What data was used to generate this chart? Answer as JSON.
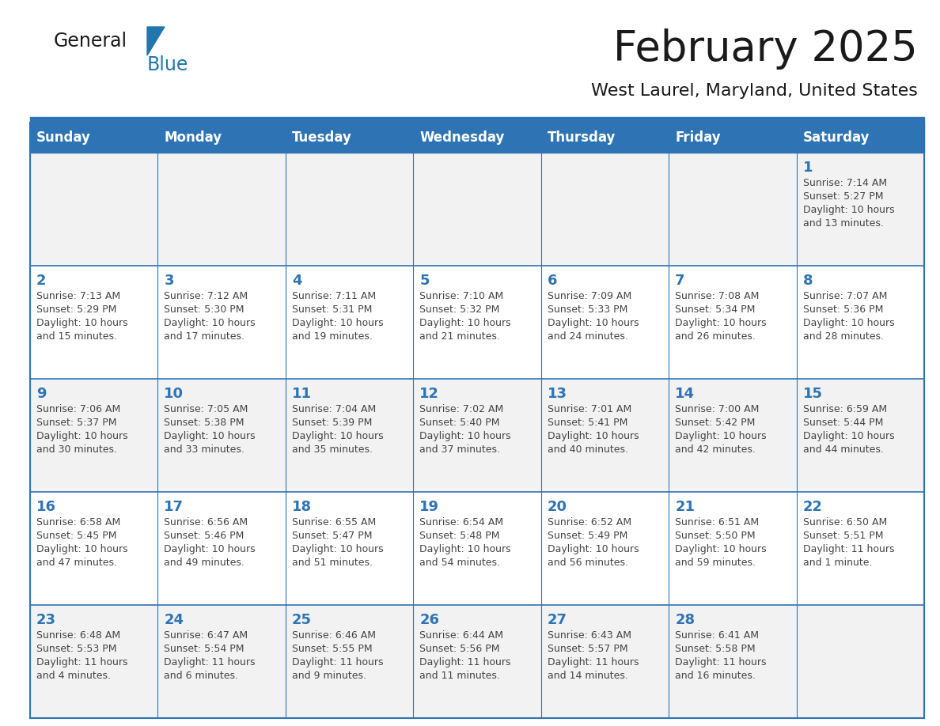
{
  "title": "February 2025",
  "subtitle": "West Laurel, Maryland, United States",
  "header_bg": "#2E74B5",
  "header_text_color": "#FFFFFF",
  "cell_bg_odd": "#F2F2F2",
  "cell_bg_even": "#FFFFFF",
  "day_number_color": "#2E74B5",
  "info_text_color": "#444444",
  "border_color": "#2E74B5",
  "days_of_week": [
    "Sunday",
    "Monday",
    "Tuesday",
    "Wednesday",
    "Thursday",
    "Friday",
    "Saturday"
  ],
  "calendar_data": [
    [
      null,
      null,
      null,
      null,
      null,
      null,
      {
        "day": "1",
        "sunrise": "7:14 AM",
        "sunset": "5:27 PM",
        "daylight1": "Daylight: 10 hours",
        "daylight2": "and 13 minutes."
      }
    ],
    [
      {
        "day": "2",
        "sunrise": "7:13 AM",
        "sunset": "5:29 PM",
        "daylight1": "Daylight: 10 hours",
        "daylight2": "and 15 minutes."
      },
      {
        "day": "3",
        "sunrise": "7:12 AM",
        "sunset": "5:30 PM",
        "daylight1": "Daylight: 10 hours",
        "daylight2": "and 17 minutes."
      },
      {
        "day": "4",
        "sunrise": "7:11 AM",
        "sunset": "5:31 PM",
        "daylight1": "Daylight: 10 hours",
        "daylight2": "and 19 minutes."
      },
      {
        "day": "5",
        "sunrise": "7:10 AM",
        "sunset": "5:32 PM",
        "daylight1": "Daylight: 10 hours",
        "daylight2": "and 21 minutes."
      },
      {
        "day": "6",
        "sunrise": "7:09 AM",
        "sunset": "5:33 PM",
        "daylight1": "Daylight: 10 hours",
        "daylight2": "and 24 minutes."
      },
      {
        "day": "7",
        "sunrise": "7:08 AM",
        "sunset": "5:34 PM",
        "daylight1": "Daylight: 10 hours",
        "daylight2": "and 26 minutes."
      },
      {
        "day": "8",
        "sunrise": "7:07 AM",
        "sunset": "5:36 PM",
        "daylight1": "Daylight: 10 hours",
        "daylight2": "and 28 minutes."
      }
    ],
    [
      {
        "day": "9",
        "sunrise": "7:06 AM",
        "sunset": "5:37 PM",
        "daylight1": "Daylight: 10 hours",
        "daylight2": "and 30 minutes."
      },
      {
        "day": "10",
        "sunrise": "7:05 AM",
        "sunset": "5:38 PM",
        "daylight1": "Daylight: 10 hours",
        "daylight2": "and 33 minutes."
      },
      {
        "day": "11",
        "sunrise": "7:04 AM",
        "sunset": "5:39 PM",
        "daylight1": "Daylight: 10 hours",
        "daylight2": "and 35 minutes."
      },
      {
        "day": "12",
        "sunrise": "7:02 AM",
        "sunset": "5:40 PM",
        "daylight1": "Daylight: 10 hours",
        "daylight2": "and 37 minutes."
      },
      {
        "day": "13",
        "sunrise": "7:01 AM",
        "sunset": "5:41 PM",
        "daylight1": "Daylight: 10 hours",
        "daylight2": "and 40 minutes."
      },
      {
        "day": "14",
        "sunrise": "7:00 AM",
        "sunset": "5:42 PM",
        "daylight1": "Daylight: 10 hours",
        "daylight2": "and 42 minutes."
      },
      {
        "day": "15",
        "sunrise": "6:59 AM",
        "sunset": "5:44 PM",
        "daylight1": "Daylight: 10 hours",
        "daylight2": "and 44 minutes."
      }
    ],
    [
      {
        "day": "16",
        "sunrise": "6:58 AM",
        "sunset": "5:45 PM",
        "daylight1": "Daylight: 10 hours",
        "daylight2": "and 47 minutes."
      },
      {
        "day": "17",
        "sunrise": "6:56 AM",
        "sunset": "5:46 PM",
        "daylight1": "Daylight: 10 hours",
        "daylight2": "and 49 minutes."
      },
      {
        "day": "18",
        "sunrise": "6:55 AM",
        "sunset": "5:47 PM",
        "daylight1": "Daylight: 10 hours",
        "daylight2": "and 51 minutes."
      },
      {
        "day": "19",
        "sunrise": "6:54 AM",
        "sunset": "5:48 PM",
        "daylight1": "Daylight: 10 hours",
        "daylight2": "and 54 minutes."
      },
      {
        "day": "20",
        "sunrise": "6:52 AM",
        "sunset": "5:49 PM",
        "daylight1": "Daylight: 10 hours",
        "daylight2": "and 56 minutes."
      },
      {
        "day": "21",
        "sunrise": "6:51 AM",
        "sunset": "5:50 PM",
        "daylight1": "Daylight: 10 hours",
        "daylight2": "and 59 minutes."
      },
      {
        "day": "22",
        "sunrise": "6:50 AM",
        "sunset": "5:51 PM",
        "daylight1": "Daylight: 11 hours",
        "daylight2": "and 1 minute."
      }
    ],
    [
      {
        "day": "23",
        "sunrise": "6:48 AM",
        "sunset": "5:53 PM",
        "daylight1": "Daylight: 11 hours",
        "daylight2": "and 4 minutes."
      },
      {
        "day": "24",
        "sunrise": "6:47 AM",
        "sunset": "5:54 PM",
        "daylight1": "Daylight: 11 hours",
        "daylight2": "and 6 minutes."
      },
      {
        "day": "25",
        "sunrise": "6:46 AM",
        "sunset": "5:55 PM",
        "daylight1": "Daylight: 11 hours",
        "daylight2": "and 9 minutes."
      },
      {
        "day": "26",
        "sunrise": "6:44 AM",
        "sunset": "5:56 PM",
        "daylight1": "Daylight: 11 hours",
        "daylight2": "and 11 minutes."
      },
      {
        "day": "27",
        "sunrise": "6:43 AM",
        "sunset": "5:57 PM",
        "daylight1": "Daylight: 11 hours",
        "daylight2": "and 14 minutes."
      },
      {
        "day": "28",
        "sunrise": "6:41 AM",
        "sunset": "5:58 PM",
        "daylight1": "Daylight: 11 hours",
        "daylight2": "and 16 minutes."
      },
      null
    ]
  ],
  "logo_color_general": "#1a1a1a",
  "logo_color_blue": "#2176AE",
  "logo_triangle_color": "#2176AE",
  "title_color": "#1a1a1a",
  "subtitle_color": "#1a1a1a"
}
